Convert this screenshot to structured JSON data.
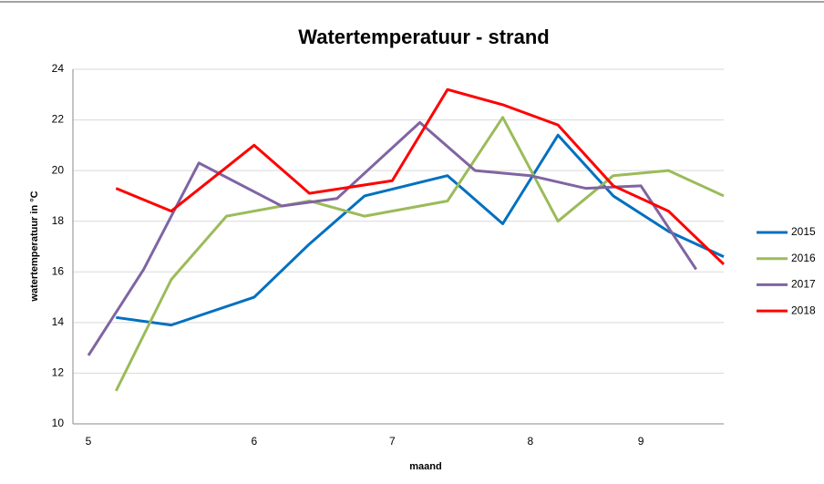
{
  "chart_data": {
    "type": "line",
    "title": "Watertemperatuur - strand",
    "x_label": "maand",
    "y_label": "watertemperatuur in °C",
    "categories": [
      "5",
      null,
      null,
      null,
      null,
      null,
      "6",
      null,
      null,
      null,
      null,
      "7",
      null,
      null,
      null,
      null,
      "8",
      null,
      null,
      null,
      "9",
      null,
      null,
      null
    ],
    "ylim": [
      10,
      24
    ],
    "yticks": [
      10,
      12,
      14,
      16,
      18,
      20,
      22,
      24
    ],
    "grid": true,
    "legend": "right",
    "series": [
      {
        "name": "2015",
        "color": "#0070c0",
        "values": [
          null,
          14.2,
          null,
          13.9,
          null,
          null,
          15.0,
          null,
          17.1,
          null,
          19.0,
          null,
          null,
          19.8,
          null,
          17.9,
          null,
          21.4,
          null,
          19.0,
          null,
          17.6,
          null,
          16.6
        ]
      },
      {
        "name": "2016",
        "color": "#9bbb59",
        "values": [
          null,
          11.3,
          null,
          15.7,
          null,
          18.2,
          null,
          null,
          18.8,
          null,
          18.2,
          null,
          null,
          18.8,
          null,
          22.1,
          null,
          18.0,
          null,
          19.8,
          null,
          20.0,
          null,
          19.0
        ]
      },
      {
        "name": "2017",
        "color": "#8064a2",
        "values": [
          12.7,
          null,
          16.1,
          null,
          20.3,
          null,
          null,
          18.6,
          null,
          18.9,
          null,
          null,
          21.9,
          null,
          20.0,
          null,
          19.8,
          null,
          19.3,
          null,
          19.4,
          null,
          16.1,
          null
        ]
      },
      {
        "name": "2018",
        "color": "#ff0000",
        "values": [
          null,
          19.3,
          null,
          18.4,
          null,
          null,
          21.0,
          null,
          19.1,
          null,
          null,
          19.6,
          null,
          23.2,
          null,
          22.6,
          null,
          21.8,
          null,
          19.4,
          null,
          18.4,
          null,
          16.3
        ]
      }
    ]
  }
}
